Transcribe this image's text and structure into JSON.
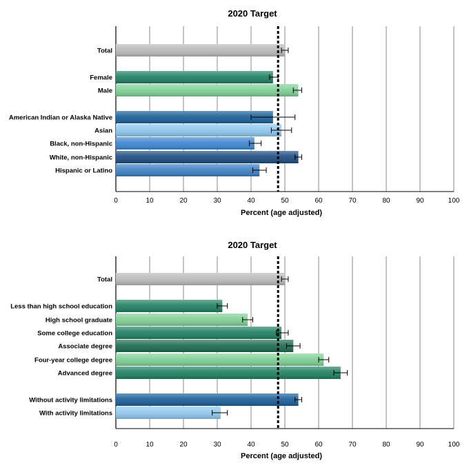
{
  "colors": {
    "gray": "#b9b9b9",
    "teal": "#1f7f61",
    "mint": "#7fcf94",
    "darkteal": "#1d6a4f",
    "blue": "#1a5f98",
    "lightblue": "#8fc6ee",
    "medblue": "#3d86d0",
    "navy": "#1c4b80",
    "steel": "#3c7fc2"
  },
  "chart_data": [
    {
      "type": "bar",
      "orientation": "horizontal",
      "title": "2020 Target",
      "xlabel": "Percent (age adjusted)",
      "xlim": [
        0,
        100
      ],
      "xticks": [
        "0",
        "10",
        "20",
        "30",
        "40",
        "50",
        "60",
        "70",
        "80",
        "90",
        "100"
      ],
      "target": 48,
      "categories": [
        {
          "label": "Total",
          "value": 50,
          "err": [
            49,
            51
          ],
          "color": "gray"
        },
        {
          "label": "Female",
          "value": 46.5,
          "err": [
            45.5,
            48
          ],
          "color": "teal"
        },
        {
          "label": "Male",
          "value": 54,
          "err": [
            52.5,
            55
          ],
          "color": "mint"
        },
        {
          "label": "American Indian or Alaska Native",
          "value": 46.5,
          "err": [
            40,
            53
          ],
          "color": "blue"
        },
        {
          "label": "Asian",
          "value": 49,
          "err": [
            46,
            52
          ],
          "color": "lightblue"
        },
        {
          "label": "Black, non-Hispanic",
          "value": 41,
          "err": [
            39.5,
            43
          ],
          "color": "medblue"
        },
        {
          "label": "White, non-Hispanic",
          "value": 54,
          "err": [
            53,
            55
          ],
          "color": "navy"
        },
        {
          "label": "Hispanic or Latino",
          "value": 42.5,
          "err": [
            40.5,
            44.5
          ],
          "color": "steel"
        }
      ]
    },
    {
      "type": "bar",
      "orientation": "horizontal",
      "title": "2020 Target",
      "xlabel": "Percent (age adjusted)",
      "xlim": [
        0,
        100
      ],
      "xticks": [
        "0",
        "10",
        "20",
        "30",
        "40",
        "50",
        "60",
        "70",
        "80",
        "90",
        "100"
      ],
      "target": 48,
      "categories": [
        {
          "label": "Total",
          "value": 50,
          "err": [
            49,
            51
          ],
          "color": "gray"
        },
        {
          "label": "Less than high school education",
          "value": 31.5,
          "err": [
            30,
            33
          ],
          "color": "teal"
        },
        {
          "label": "High school graduate",
          "value": 39,
          "err": [
            37.5,
            40.5
          ],
          "color": "mint"
        },
        {
          "label": "Some college education",
          "value": 49,
          "err": [
            47.5,
            51
          ],
          "color": "teal"
        },
        {
          "label": "Associate degree",
          "value": 52.5,
          "err": [
            50.5,
            54.5
          ],
          "color": "darkteal"
        },
        {
          "label": "Four-year college degree",
          "value": 61.5,
          "err": [
            60,
            63
          ],
          "color": "mint"
        },
        {
          "label": "Advanced degree",
          "value": 66.5,
          "err": [
            64.5,
            68.5
          ],
          "color": "teal"
        },
        {
          "label": "Without activity limitations",
          "value": 54,
          "err": [
            53,
            55
          ],
          "color": "blue"
        },
        {
          "label": "With activity limitations",
          "value": 31,
          "err": [
            28.5,
            33
          ],
          "color": "lightblue"
        }
      ]
    }
  ]
}
